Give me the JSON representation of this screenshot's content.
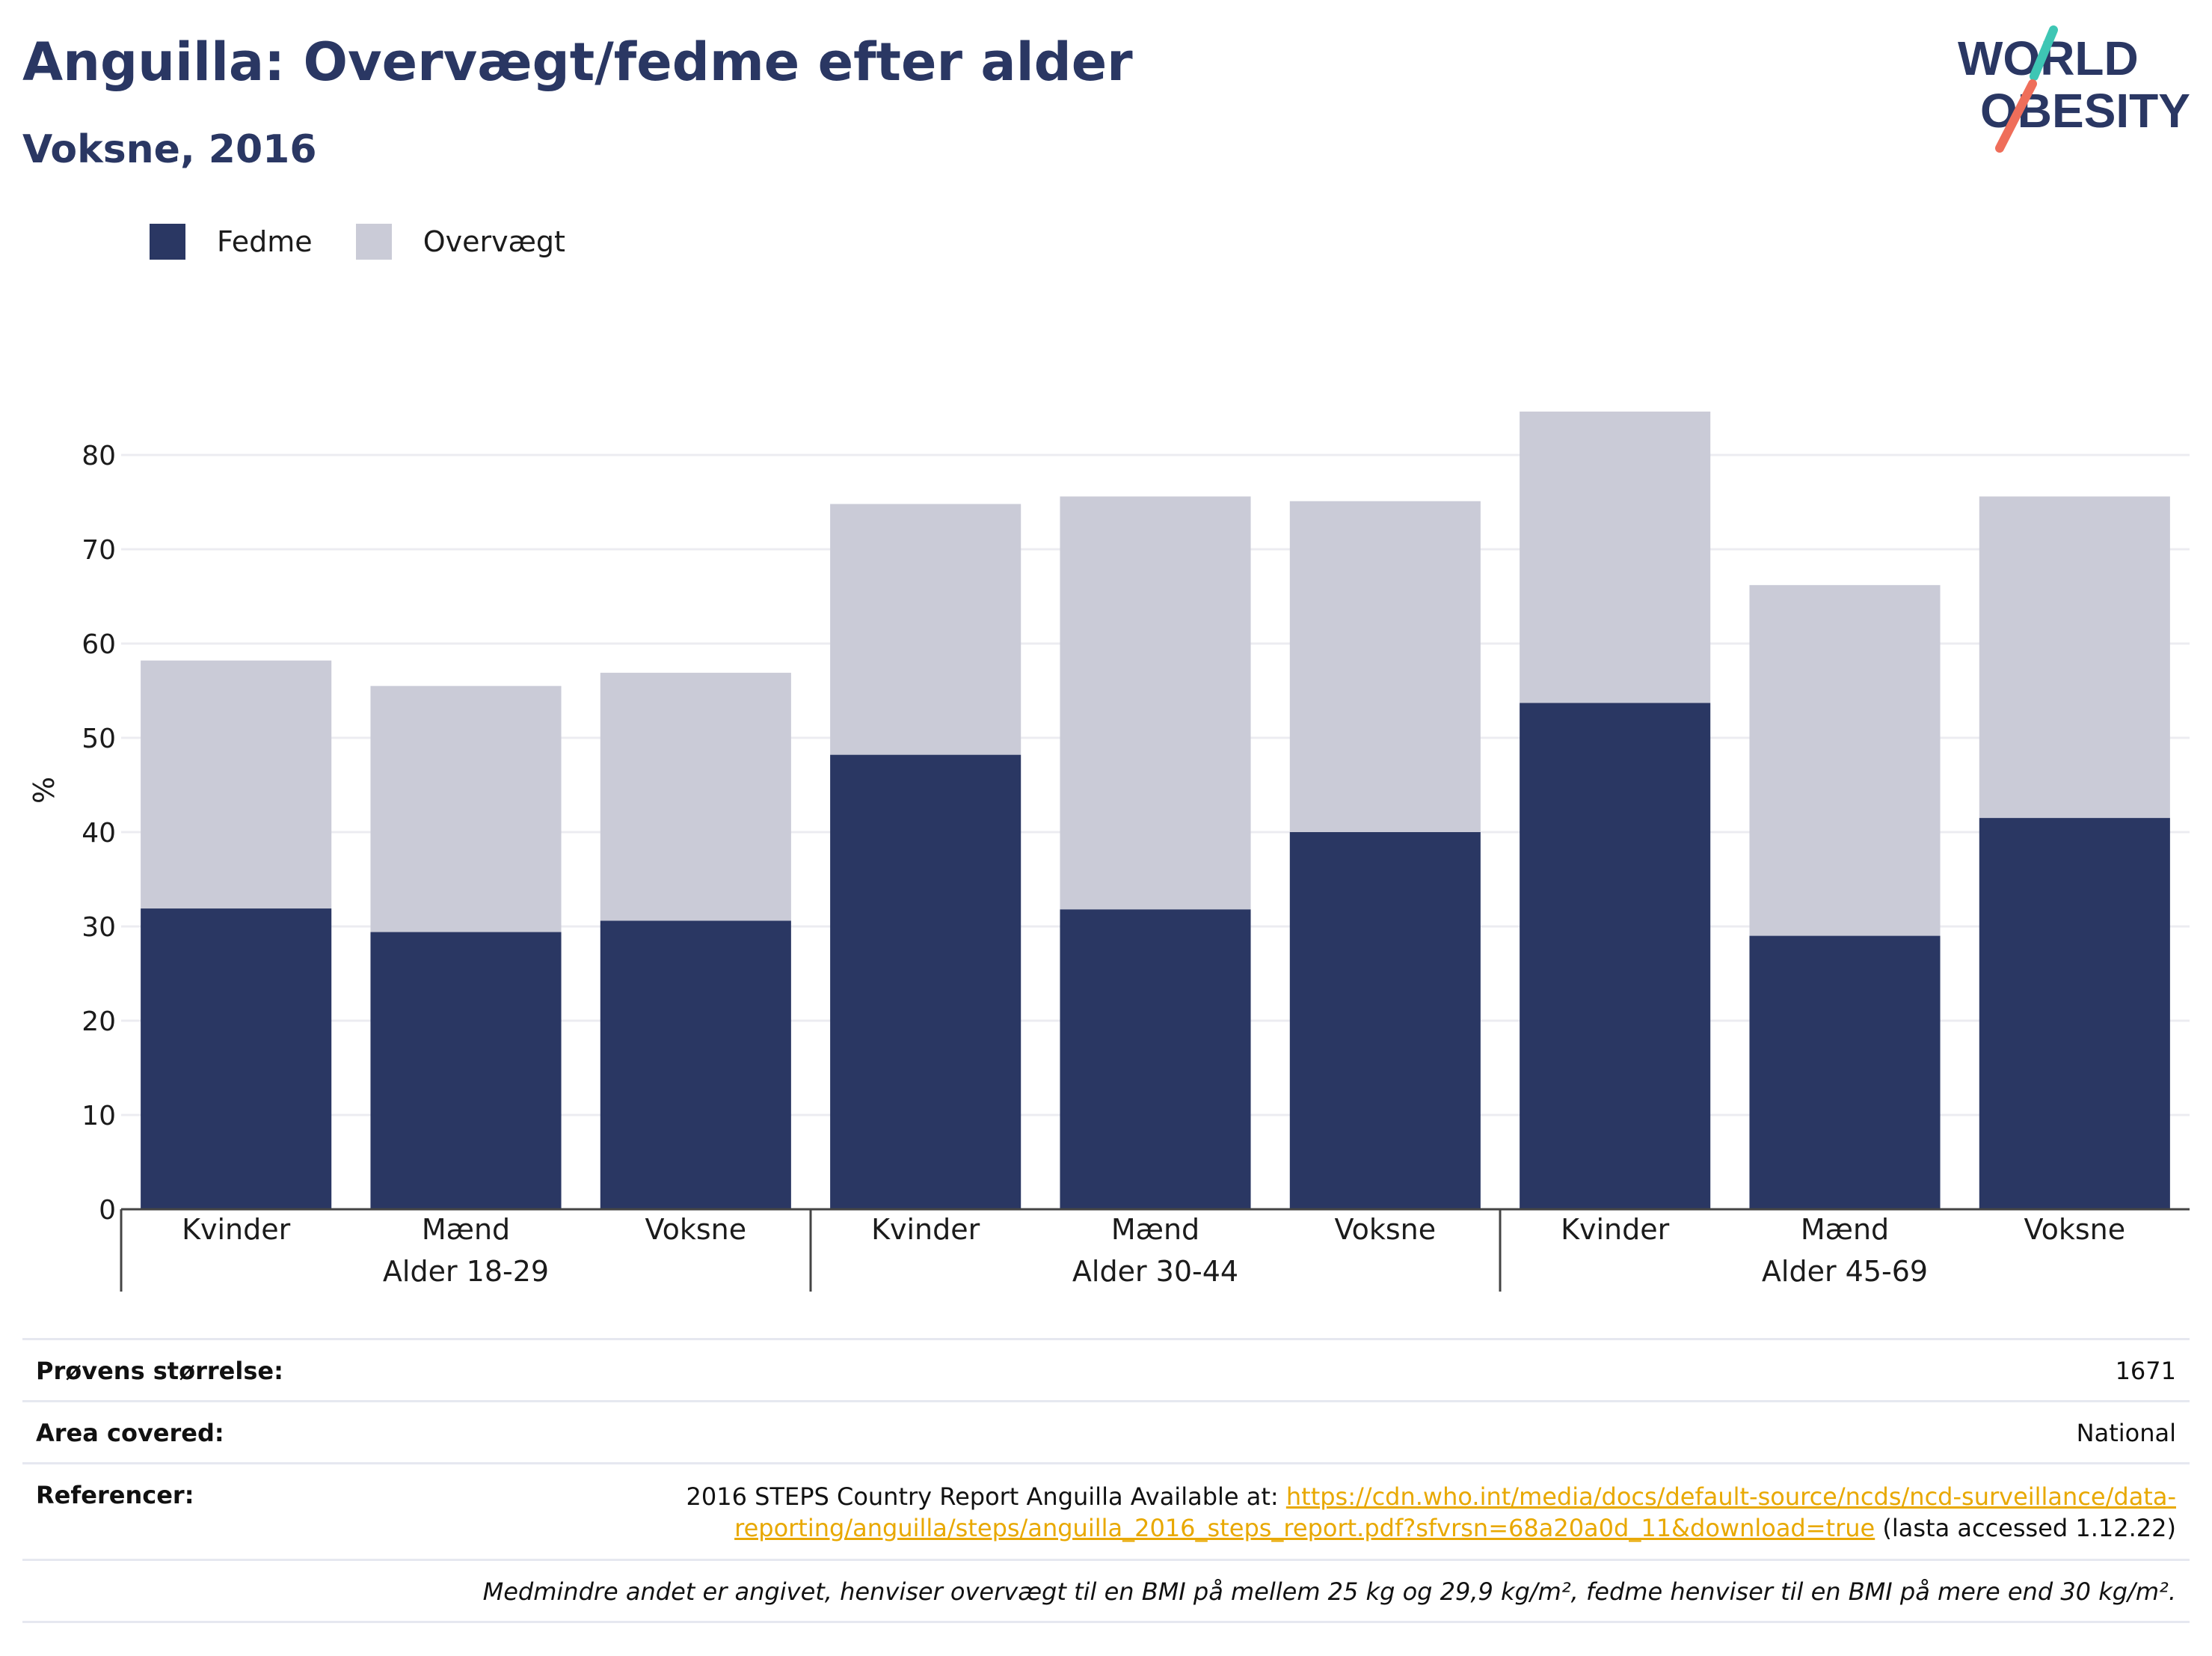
{
  "header": {
    "title": "Anguilla: Overvægt/fedme efter alder",
    "subtitle": "Voksne, 2016"
  },
  "logo": {
    "line1": "WORLD",
    "line2": "OBESITY"
  },
  "colors": {
    "obesity": "#2a3763",
    "overweight": "#cacbd7",
    "grid": "#ececf1",
    "axis": "#444444",
    "link": "#e8a800"
  },
  "legend": [
    {
      "label": "Fedme",
      "color": "#2a3763"
    },
    {
      "label": "Overvægt",
      "color": "#cacbd7"
    }
  ],
  "chart_data": {
    "type": "bar",
    "stacked": true,
    "ylabel": "%",
    "ylim": [
      0,
      85
    ],
    "yticks": [
      0,
      10,
      20,
      30,
      40,
      50,
      60,
      70,
      80
    ],
    "grid": true,
    "legend_position": "top-left",
    "categories": [
      "Kvinder",
      "Mænd",
      "Voksne",
      "Kvinder",
      "Mænd",
      "Voksne",
      "Kvinder",
      "Mænd",
      "Voksne"
    ],
    "groups": [
      {
        "label": "Alder 18-29",
        "size": 3
      },
      {
        "label": "Alder 30-44",
        "size": 3
      },
      {
        "label": "Alder 45-69",
        "size": 3
      }
    ],
    "series": [
      {
        "name": "Fedme",
        "values": [
          31.9,
          29.4,
          30.6,
          48.2,
          31.8,
          40.0,
          53.7,
          29.0,
          41.5
        ]
      },
      {
        "name": "Overvægt",
        "values": [
          26.3,
          26.1,
          26.3,
          26.6,
          43.8,
          35.1,
          30.9,
          37.2,
          34.1
        ]
      }
    ]
  },
  "info": {
    "sample_label": "Prøvens størrelse:",
    "sample_value": "1671",
    "area_label": "Area covered:",
    "area_value": "National",
    "ref_label": "Referencer:",
    "ref_text": "2016 STEPS Country Report Anguilla Available at: ",
    "ref_link_1": "https://cdn.who.int/media/docs/default-source/ncds/ncd-surveillance/data-",
    "ref_link_2": "reporting/anguilla/steps/anguilla_2016_steps_report.pdf?sfvrsn=68a20a0d_11&download=true",
    "ref_accessed": " (lasta accessed 1.12.22)",
    "footnote": "Medmindre andet er angivet, henviser overvægt til en BMI på mellem 25 kg og 29,9 kg/m², fedme henviser til en BMI på mere end 30 kg/m²."
  }
}
